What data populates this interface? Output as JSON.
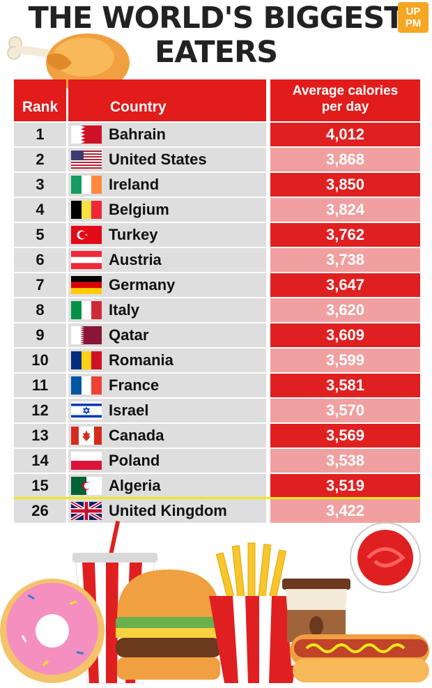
{
  "title": {
    "line1": "THE WORLD'S BIGGEST",
    "line2": "EATERS"
  },
  "logo": {
    "line1": "UP",
    "line2": "PM"
  },
  "header": {
    "rank": "Rank",
    "country": "Country",
    "calories_line1": "Average calories",
    "calories_line2": "per day"
  },
  "colors": {
    "accent_red": "#e21b1b",
    "row_dark": "#e02020",
    "row_light": "#f0a0a0",
    "uk_divider": "#f2e61a"
  },
  "rows": [
    {
      "rank": "1",
      "country": "Bahrain",
      "flag": "bahrain-flag-icon",
      "calories": "4,012"
    },
    {
      "rank": "2",
      "country": "United States",
      "flag": "usa-flag-icon",
      "calories": "3,868"
    },
    {
      "rank": "3",
      "country": "Ireland",
      "flag": "ireland-flag-icon",
      "calories": "3,850"
    },
    {
      "rank": "4",
      "country": "Belgium",
      "flag": "belgium-flag-icon",
      "calories": "3,824"
    },
    {
      "rank": "5",
      "country": "Turkey",
      "flag": "turkey-flag-icon",
      "calories": "3,762"
    },
    {
      "rank": "6",
      "country": "Austria",
      "flag": "austria-flag-icon",
      "calories": "3,738"
    },
    {
      "rank": "7",
      "country": "Germany",
      "flag": "germany-flag-icon",
      "calories": "3,647"
    },
    {
      "rank": "8",
      "country": "Italy",
      "flag": "italy-flag-icon",
      "calories": "3,620"
    },
    {
      "rank": "9",
      "country": "Qatar",
      "flag": "qatar-flag-icon",
      "calories": "3,609"
    },
    {
      "rank": "10",
      "country": "Romania",
      "flag": "romania-flag-icon",
      "calories": "3,599"
    },
    {
      "rank": "11",
      "country": "France",
      "flag": "france-flag-icon",
      "calories": "3,581"
    },
    {
      "rank": "12",
      "country": "Israel",
      "flag": "israel-flag-icon",
      "calories": "3,570"
    },
    {
      "rank": "13",
      "country": "Canada",
      "flag": "canada-flag-icon",
      "calories": "3,569"
    },
    {
      "rank": "14",
      "country": "Poland",
      "flag": "poland-flag-icon",
      "calories": "3,538"
    },
    {
      "rank": "15",
      "country": "Algeria",
      "flag": "algeria-flag-icon",
      "calories": "3,519"
    },
    {
      "rank": "26",
      "country": "United Kingdom",
      "flag": "uk-flag-icon",
      "calories": "3,422"
    }
  ],
  "chart_data": {
    "type": "table",
    "columns": [
      "Rank",
      "Country",
      "Average calories per day"
    ],
    "rows": [
      [
        "1",
        "Bahrain",
        4012
      ],
      [
        "2",
        "United States",
        3868
      ],
      [
        "3",
        "Ireland",
        3850
      ],
      [
        "4",
        "Belgium",
        3824
      ],
      [
        "5",
        "Turkey",
        3762
      ],
      [
        "6",
        "Austria",
        3738
      ],
      [
        "7",
        "Germany",
        3647
      ],
      [
        "8",
        "Italy",
        3620
      ],
      [
        "9",
        "Qatar",
        3609
      ],
      [
        "10",
        "Romania",
        3599
      ],
      [
        "11",
        "France",
        3581
      ],
      [
        "12",
        "Israel",
        3570
      ],
      [
        "13",
        "Canada",
        3569
      ],
      [
        "14",
        "Poland",
        3538
      ],
      [
        "15",
        "Algeria",
        3519
      ],
      [
        "26",
        "United Kingdom",
        3422
      ]
    ],
    "title": "THE WORLD'S BIGGEST EATERS"
  }
}
